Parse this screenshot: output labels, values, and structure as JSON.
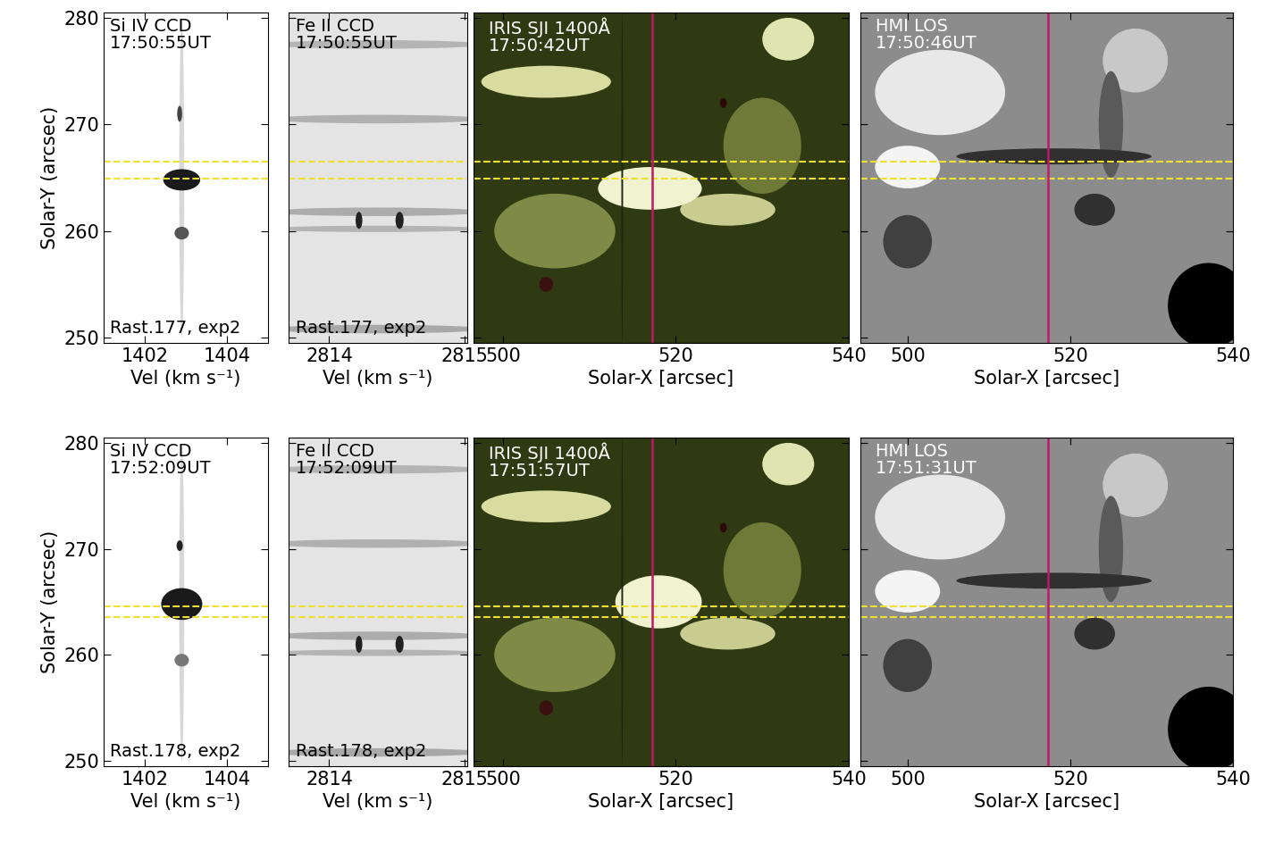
{
  "chart_data": [
    {
      "type": "image",
      "annotations": [
        "Si IV CCD",
        "17:50:55UT"
      ],
      "footer": "Rast.177, exp2",
      "xlabel": "Vel (km s⁻¹)",
      "ylabel": "Solar-Y (arcsec)",
      "color": "#ffffff",
      "xlim": [
        1401,
        1405
      ],
      "xticks": [
        1402,
        1404
      ],
      "ylim": [
        249.5,
        280.5
      ],
      "yticks": [
        250,
        260,
        270,
        280
      ],
      "hlines": [
        {
          "y": 266.5,
          "color": "#f0e030"
        },
        {
          "y": 264.9,
          "color": "#f0e030"
        }
      ],
      "features": [
        {
          "x": 1402.9,
          "y": 265,
          "w": 0.12,
          "h": 30,
          "color": "#d8d8d8"
        },
        {
          "x": 1402.9,
          "y": 264.8,
          "w": 0.9,
          "h": 2.0,
          "color": "#1a1a1a"
        },
        {
          "x": 1402.9,
          "y": 259.8,
          "w": 0.35,
          "h": 1.2,
          "color": "#555555"
        },
        {
          "x": 1402.85,
          "y": 271,
          "w": 0.12,
          "h": 1.5,
          "color": "#444444"
        }
      ]
    },
    {
      "type": "image",
      "annotations": [
        "Fe II CCD",
        "17:50:55UT"
      ],
      "footer": "Rast.177, exp2",
      "xlabel": "Vel (km s⁻¹)",
      "color": "#e4e4e4",
      "tick_labels": "x",
      "xlim": [
        2813.7,
        2815.02
      ],
      "xticks": [
        2814,
        2815
      ],
      "ylim": [
        249.5,
        280.5
      ],
      "yticks": [
        250,
        260,
        270,
        280
      ],
      "hlines": [
        {
          "y": 266.5,
          "color": "#f0e030"
        },
        {
          "y": 264.9,
          "color": "#f0e030"
        }
      ],
      "features": [
        {
          "x": 2814.35,
          "y": 277.5,
          "w": 1.6,
          "h": 0.8,
          "color": "#b4b4b4"
        },
        {
          "x": 2814.35,
          "y": 270.5,
          "w": 1.6,
          "h": 0.8,
          "color": "#b0b0b0"
        },
        {
          "x": 2814.35,
          "y": 261.8,
          "w": 1.6,
          "h": 0.8,
          "color": "#acacac"
        },
        {
          "x": 2814.35,
          "y": 260.2,
          "w": 1.6,
          "h": 0.6,
          "color": "#b4b4b4"
        },
        {
          "x": 2814.35,
          "y": 250.8,
          "w": 1.6,
          "h": 0.8,
          "color": "#a8a8a8"
        },
        {
          "x": 2814.22,
          "y": 261,
          "w": 0.05,
          "h": 1.6,
          "color": "#222222"
        },
        {
          "x": 2814.52,
          "y": 261,
          "w": 0.06,
          "h": 1.6,
          "color": "#222222"
        }
      ]
    },
    {
      "type": "image",
      "annotations": [
        "IRIS SJI 1400Å",
        "17:50:42UT"
      ],
      "xlabel": "Solar-X [arcsec]",
      "color": "#2f3a12",
      "tick_labels": "x",
      "xlim": [
        496.6,
        540
      ],
      "xticks": [
        500,
        520,
        540
      ],
      "ylim": [
        249.5,
        280.5
      ],
      "yticks": [
        250,
        260,
        270,
        280
      ],
      "hlines": [
        {
          "y": 266.5,
          "color": "#f0e030"
        },
        {
          "y": 264.9,
          "color": "#f0e030"
        }
      ],
      "vline": {
        "x": 517.3,
        "color": "#c0186a"
      },
      "features": [
        {
          "x": 506,
          "y": 260,
          "w": 14,
          "h": 7,
          "color": "#7f8a46"
        },
        {
          "x": 530,
          "y": 268,
          "w": 9,
          "h": 9,
          "color": "#6f7a38"
        },
        {
          "x": 505,
          "y": 274,
          "w": 15,
          "h": 3,
          "color": "#d8dca0"
        },
        {
          "x": 526,
          "y": 262,
          "w": 11,
          "h": 3,
          "color": "#c8cc90"
        },
        {
          "x": 517,
          "y": 264,
          "w": 12,
          "h": 4,
          "color": "#f0f2d0"
        },
        {
          "x": 533,
          "y": 278,
          "w": 6,
          "h": 4,
          "color": "#e0e4b0"
        },
        {
          "x": 513.8,
          "y": 265,
          "w": 0.2,
          "h": 31,
          "color": "#1e2410"
        },
        {
          "x": 505,
          "y": 255,
          "w": 1.6,
          "h": 1.4,
          "color": "#3a1010"
        },
        {
          "x": 525.5,
          "y": 272,
          "w": 0.8,
          "h": 0.9,
          "color": "#2a0a0a"
        }
      ]
    },
    {
      "type": "image",
      "annotations": [
        "HMI LOS",
        "17:50:46UT"
      ],
      "xlabel": "Solar-X [arcsec]",
      "color": "#8c8c8c",
      "tick_labels": "x",
      "xlim": [
        494.2,
        540
      ],
      "xticks": [
        500,
        520,
        540
      ],
      "ylim": [
        249.5,
        280.5
      ],
      "yticks": [
        250,
        260,
        270,
        280
      ],
      "hlines": [
        {
          "y": 266.5,
          "color": "#f0e030"
        },
        {
          "y": 264.9,
          "color": "#f0e030"
        }
      ],
      "vline": {
        "x": 517.3,
        "color": "#c0186a"
      },
      "features": [
        {
          "x": 504,
          "y": 273,
          "w": 16,
          "h": 8,
          "color": "#e8e8e8"
        },
        {
          "x": 500,
          "y": 266,
          "w": 8,
          "h": 4,
          "color": "#f4f4f4"
        },
        {
          "x": 528,
          "y": 276,
          "w": 8,
          "h": 6,
          "color": "#c8c8c8"
        },
        {
          "x": 525,
          "y": 270,
          "w": 3,
          "h": 10,
          "color": "#5a5a5a"
        },
        {
          "x": 518,
          "y": 267,
          "w": 24,
          "h": 1.5,
          "color": "#303030"
        },
        {
          "x": 500,
          "y": 259,
          "w": 6,
          "h": 5,
          "color": "#404040"
        },
        {
          "x": 523,
          "y": 262,
          "w": 5,
          "h": 3,
          "color": "#303030"
        },
        {
          "x": 537,
          "y": 253,
          "w": 10,
          "h": 8,
          "color": "#000000"
        }
      ]
    },
    {
      "type": "image",
      "annotations": [
        "Si IV CCD",
        "17:52:09UT"
      ],
      "footer": "Rast.178, exp2",
      "xlabel": "Vel (km s⁻¹)",
      "ylabel": "Solar-Y (arcsec)",
      "color": "#ffffff",
      "xlim": [
        1401,
        1405
      ],
      "xticks": [
        1402,
        1404
      ],
      "ylim": [
        249.5,
        280.5
      ],
      "yticks": [
        250,
        260,
        270,
        280
      ],
      "hlines": [
        {
          "y": 264.6,
          "color": "#f0e030"
        },
        {
          "y": 263.6,
          "color": "#f0e030"
        }
      ],
      "features": [
        {
          "x": 1402.9,
          "y": 265,
          "w": 0.12,
          "h": 30,
          "color": "#d8d8d8"
        },
        {
          "x": 1402.9,
          "y": 264.8,
          "w": 1.0,
          "h": 3.0,
          "color": "#1a1a1a"
        },
        {
          "x": 1402.9,
          "y": 259.5,
          "w": 0.35,
          "h": 1.2,
          "color": "#777777"
        },
        {
          "x": 1402.85,
          "y": 270.3,
          "w": 0.15,
          "h": 1.0,
          "color": "#222222"
        }
      ]
    },
    {
      "type": "image",
      "annotations": [
        "Fe II CCD",
        "17:52:09UT"
      ],
      "footer": "Rast.178, exp2",
      "xlabel": "Vel (km s⁻¹)",
      "color": "#e4e4e4",
      "tick_labels": "x",
      "xlim": [
        2813.7,
        2815.02
      ],
      "xticks": [
        2814,
        2815
      ],
      "ylim": [
        249.5,
        280.5
      ],
      "yticks": [
        250,
        260,
        270,
        280
      ],
      "hlines": [
        {
          "y": 264.6,
          "color": "#f0e030"
        },
        {
          "y": 263.6,
          "color": "#f0e030"
        }
      ],
      "features": [
        {
          "x": 2814.35,
          "y": 277.5,
          "w": 1.6,
          "h": 0.8,
          "color": "#b4b4b4"
        },
        {
          "x": 2814.35,
          "y": 270.5,
          "w": 1.6,
          "h": 0.8,
          "color": "#b0b0b0"
        },
        {
          "x": 2814.35,
          "y": 261.8,
          "w": 1.6,
          "h": 0.8,
          "color": "#acacac"
        },
        {
          "x": 2814.35,
          "y": 260.2,
          "w": 1.6,
          "h": 0.6,
          "color": "#b4b4b4"
        },
        {
          "x": 2814.35,
          "y": 250.8,
          "w": 1.6,
          "h": 0.8,
          "color": "#a8a8a8"
        },
        {
          "x": 2814.22,
          "y": 261,
          "w": 0.05,
          "h": 1.6,
          "color": "#222222"
        },
        {
          "x": 2814.52,
          "y": 261,
          "w": 0.06,
          "h": 1.6,
          "color": "#222222"
        }
      ]
    },
    {
      "type": "image",
      "annotations": [
        "IRIS SJI 1400Å",
        "17:51:57UT"
      ],
      "xlabel": "Solar-X [arcsec]",
      "color": "#2f3a12",
      "tick_labels": "x",
      "xlim": [
        496.6,
        540
      ],
      "xticks": [
        500,
        520,
        540
      ],
      "ylim": [
        249.5,
        280.5
      ],
      "yticks": [
        250,
        260,
        270,
        280
      ],
      "hlines": [
        {
          "y": 264.6,
          "color": "#f0e030"
        },
        {
          "y": 263.6,
          "color": "#f0e030"
        }
      ],
      "vline": {
        "x": 517.3,
        "color": "#c0186a"
      },
      "features": [
        {
          "x": 506,
          "y": 260,
          "w": 14,
          "h": 7,
          "color": "#7f8a46"
        },
        {
          "x": 530,
          "y": 268,
          "w": 9,
          "h": 9,
          "color": "#6f7a38"
        },
        {
          "x": 505,
          "y": 274,
          "w": 15,
          "h": 3,
          "color": "#d8dca0"
        },
        {
          "x": 526,
          "y": 262,
          "w": 11,
          "h": 3,
          "color": "#c8cc90"
        },
        {
          "x": 518,
          "y": 265,
          "w": 10,
          "h": 5,
          "color": "#f0f2d0"
        },
        {
          "x": 533,
          "y": 278,
          "w": 6,
          "h": 4,
          "color": "#e0e4b0"
        },
        {
          "x": 513.8,
          "y": 265,
          "w": 0.2,
          "h": 31,
          "color": "#1e2410"
        },
        {
          "x": 505,
          "y": 255,
          "w": 1.6,
          "h": 1.4,
          "color": "#3a1010"
        },
        {
          "x": 525.5,
          "y": 272,
          "w": 0.8,
          "h": 0.9,
          "color": "#2a0a0a"
        }
      ]
    },
    {
      "type": "image",
      "annotations": [
        "HMI LOS",
        "17:51:31UT"
      ],
      "xlabel": "Solar-X [arcsec]",
      "color": "#8c8c8c",
      "tick_labels": "x",
      "xlim": [
        494.2,
        540
      ],
      "xticks": [
        500,
        520,
        540
      ],
      "ylim": [
        249.5,
        280.5
      ],
      "yticks": [
        250,
        260,
        270,
        280
      ],
      "hlines": [
        {
          "y": 264.6,
          "color": "#f0e030"
        },
        {
          "y": 263.6,
          "color": "#f0e030"
        }
      ],
      "vline": {
        "x": 517.3,
        "color": "#c0186a"
      },
      "features": [
        {
          "x": 504,
          "y": 273,
          "w": 16,
          "h": 8,
          "color": "#e8e8e8"
        },
        {
          "x": 500,
          "y": 266,
          "w": 8,
          "h": 4,
          "color": "#f4f4f4"
        },
        {
          "x": 528,
          "y": 276,
          "w": 8,
          "h": 6,
          "color": "#c8c8c8"
        },
        {
          "x": 525,
          "y": 270,
          "w": 3,
          "h": 10,
          "color": "#5a5a5a"
        },
        {
          "x": 518,
          "y": 267,
          "w": 24,
          "h": 1.5,
          "color": "#303030"
        },
        {
          "x": 500,
          "y": 259,
          "w": 6,
          "h": 5,
          "color": "#404040"
        },
        {
          "x": 523,
          "y": 262,
          "w": 5,
          "h": 3,
          "color": "#303030"
        },
        {
          "x": 537,
          "y": 253,
          "w": 10,
          "h": 8,
          "color": "#000000"
        }
      ]
    }
  ]
}
